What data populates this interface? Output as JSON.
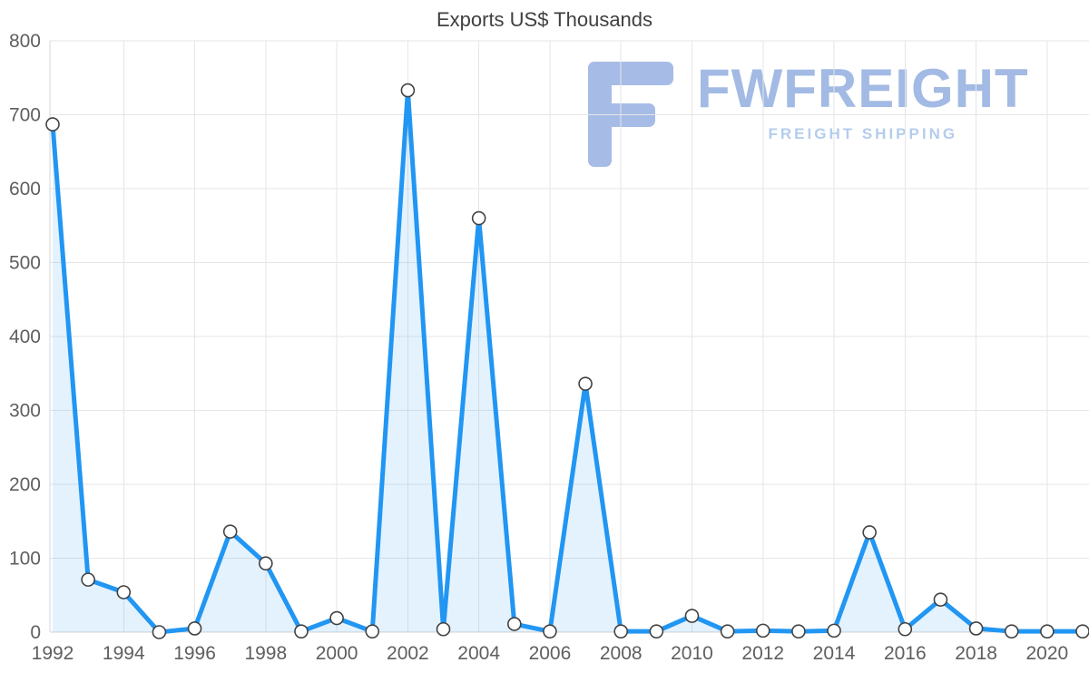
{
  "chart_data": {
    "type": "area",
    "title": "Exports US$ Thousands",
    "xlabel": "",
    "ylabel": "",
    "series_name": "Exports US$ Thousands",
    "x": [
      1992,
      1993,
      1994,
      1995,
      1996,
      1997,
      1998,
      1999,
      2000,
      2001,
      2002,
      2003,
      2004,
      2005,
      2006,
      2007,
      2008,
      2009,
      2010,
      2011,
      2012,
      2013,
      2014,
      2015,
      2016,
      2017,
      2018,
      2019,
      2020,
      2021
    ],
    "values": [
      687,
      71,
      54,
      0,
      5,
      136,
      93,
      1,
      19,
      1,
      733,
      4,
      560,
      11,
      1,
      336,
      1,
      1,
      22,
      1,
      2,
      1,
      2,
      135,
      4,
      44,
      5,
      1,
      1,
      1
    ],
    "ylim": [
      0,
      800
    ],
    "yticks": [
      0,
      100,
      200,
      300,
      400,
      500,
      600,
      700,
      800
    ],
    "xtick_every": 2,
    "grid": true,
    "legend": "none",
    "colors": {
      "line": "#2196f3",
      "fill": "rgba(33,150,243,0.12)",
      "marker_fill": "#ffffff",
      "marker_stroke": "#424242",
      "grid": "#e6e6e6",
      "axis_line": "#d4d4d4",
      "axis_label": "#5f5f5f",
      "title": "#404040"
    }
  },
  "watermark": {
    "brand": "FWFREIGHT",
    "tagline": "FREIGHT SHIPPING",
    "logo_color": "#a6bce6",
    "brand_color": "#a2bae4",
    "tagline_color": "#b4cdec"
  }
}
